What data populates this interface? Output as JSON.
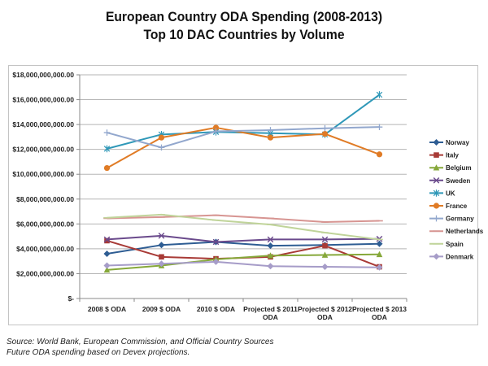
{
  "chart_data": {
    "type": "line",
    "title_line1": "European Country ODA Spending (2008-2013)",
    "title_line2": "Top 10 DAC Countries by Volume",
    "categories": [
      [
        "2008 $ ODA"
      ],
      [
        "2009 $ ODA"
      ],
      [
        "2010 $ ODA"
      ],
      [
        "Projected $ 2011",
        "ODA"
      ],
      [
        "Projected $ 2012",
        "ODA"
      ],
      [
        "Projected $ 2013",
        "ODA"
      ]
    ],
    "y_ticks": [
      {
        "value": 0,
        "label": "$-"
      },
      {
        "value": 2000000000,
        "label": "$2,000,000,000.00"
      },
      {
        "value": 4000000000,
        "label": "$4,000,000,000.00"
      },
      {
        "value": 6000000000,
        "label": "$6,000,000,000.00"
      },
      {
        "value": 8000000000,
        "label": "$8,000,000,000.00"
      },
      {
        "value": 10000000000,
        "label": "$10,000,000,000.00"
      },
      {
        "value": 12000000000,
        "label": "$12,000,000,000.00"
      },
      {
        "value": 14000000000,
        "label": "$14,000,000,000.00"
      },
      {
        "value": 16000000000,
        "label": "$16,000,000,000.00"
      },
      {
        "value": 18000000000,
        "label": "$18,000,000,000.00"
      }
    ],
    "ylim": [
      0,
      18000000000
    ],
    "grid": true,
    "legend_position": "right",
    "series": [
      {
        "name": "Norway",
        "color": "#2e5d93",
        "marker": "diamond",
        "values": [
          3600000000,
          4300000000,
          4550000000,
          4250000000,
          4300000000,
          4400000000
        ]
      },
      {
        "name": "Italy",
        "color": "#a83a36",
        "marker": "square",
        "values": [
          4650000000,
          3350000000,
          3200000000,
          3350000000,
          4250000000,
          2550000000
        ]
      },
      {
        "name": "Belgium",
        "color": "#86a83a",
        "marker": "triangle",
        "values": [
          2300000000,
          2650000000,
          3150000000,
          3450000000,
          3500000000,
          3550000000
        ]
      },
      {
        "name": "Sweden",
        "color": "#6a4a8c",
        "marker": "x",
        "values": [
          4750000000,
          5050000000,
          4550000000,
          4750000000,
          4750000000,
          4800000000
        ]
      },
      {
        "name": "UK",
        "color": "#2f98b8",
        "marker": "star",
        "values": [
          12050000000,
          13200000000,
          13400000000,
          13300000000,
          13200000000,
          16400000000
        ]
      },
      {
        "name": "France",
        "color": "#e07b25",
        "marker": "circle",
        "values": [
          10500000000,
          12950000000,
          13750000000,
          12950000000,
          13250000000,
          11600000000
        ]
      },
      {
        "name": "Germany",
        "color": "#92a7cd",
        "marker": "plus",
        "values": [
          13350000000,
          12150000000,
          13450000000,
          13550000000,
          13700000000,
          13800000000
        ]
      },
      {
        "name": "Netherlands",
        "color": "#d79592",
        "marker": "dash",
        "values": [
          6450000000,
          6550000000,
          6700000000,
          6450000000,
          6150000000,
          6250000000
        ]
      },
      {
        "name": "Spain",
        "color": "#c0d49a",
        "marker": "dash",
        "values": [
          6500000000,
          6750000000,
          6300000000,
          5950000000,
          5300000000,
          4750000000
        ]
      },
      {
        "name": "Denmark",
        "color": "#a69cc8",
        "marker": "diamond",
        "values": [
          2650000000,
          2800000000,
          2950000000,
          2600000000,
          2550000000,
          2500000000
        ]
      }
    ]
  },
  "footnote_line1": "Source: World Bank, European Commission, and Official Country Sources",
  "footnote_line2": "Future ODA spending based on Devex projections."
}
